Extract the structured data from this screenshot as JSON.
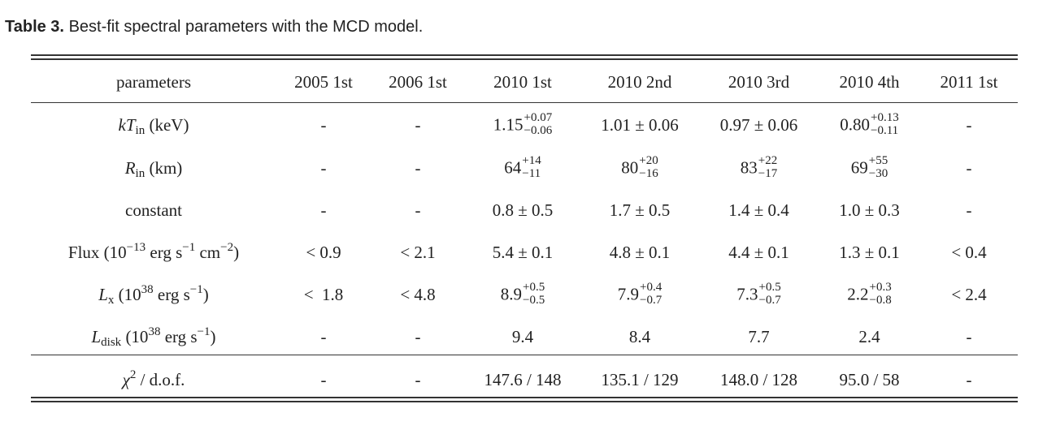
{
  "caption": {
    "label": "Table 3.",
    "text": "Best-fit spectral parameters with the MCD model."
  },
  "headers": [
    "parameters",
    "2005 1st",
    "2006 1st",
    "2010 1st",
    "2010 2nd",
    "2010 3rd",
    "2010 4th",
    "2011 1st"
  ],
  "rows": [
    {
      "param": {
        "pre": "",
        "var": "kT",
        "sub": "in",
        "sup": "",
        "post": " (keV)"
      },
      "cells": [
        {
          "text": "-"
        },
        {
          "text": "-"
        },
        {
          "base": "1.15",
          "up": "+0.07",
          "down": "−0.06"
        },
        {
          "text": "1.01 ± 0.06"
        },
        {
          "text": "0.97 ± 0.06"
        },
        {
          "base": "0.80",
          "up": "+0.13",
          "down": "−0.11"
        },
        {
          "text": "-"
        }
      ]
    },
    {
      "param": {
        "pre": "",
        "var": "R",
        "sub": "in",
        "sup": "",
        "post": " (km)"
      },
      "cells": [
        {
          "text": "-"
        },
        {
          "text": "-"
        },
        {
          "base": "64",
          "up": "+14",
          "down": "−11"
        },
        {
          "base": "80",
          "up": "+20",
          "down": "−16"
        },
        {
          "base": "83",
          "up": "+22",
          "down": "−17"
        },
        {
          "base": "69",
          "up": "+55",
          "down": "−30"
        },
        {
          "text": "-"
        }
      ]
    },
    {
      "param": {
        "plain": "constant"
      },
      "cells": [
        {
          "text": "-"
        },
        {
          "text": "-"
        },
        {
          "text": "0.8 ± 0.5"
        },
        {
          "text": "1.7 ± 0.5"
        },
        {
          "text": "1.4 ± 0.4"
        },
        {
          "text": "1.0 ± 0.3"
        },
        {
          "text": "-"
        }
      ]
    },
    {
      "param": {
        "flux_pre": "Flux (10",
        "flux_e1": "−13",
        "flux_mid": " erg s",
        "flux_e2": "−1",
        "flux_mid2": " cm",
        "flux_e3": "−2",
        "flux_post": ")"
      },
      "cells": [
        {
          "text": "< 0.9"
        },
        {
          "text": "< 2.1"
        },
        {
          "text": "5.4 ± 0.1"
        },
        {
          "text": "4.8 ± 0.1"
        },
        {
          "text": "4.4 ± 0.1"
        },
        {
          "text": "1.3 ± 0.1"
        },
        {
          "text": "< 0.4"
        }
      ]
    },
    {
      "param": {
        "var": "L",
        "sub": "x",
        "unit_pre": " (10",
        "unit_e1": "38",
        "unit_mid": " erg s",
        "unit_e2": "−1",
        "unit_post": ")"
      },
      "cells": [
        {
          "text": "<  1.8"
        },
        {
          "text": "< 4.8"
        },
        {
          "base": "8.9",
          "up": "+0.5",
          "down": "−0.5"
        },
        {
          "base": "7.9",
          "up": "+0.4",
          "down": "−0.7"
        },
        {
          "base": "7.3",
          "up": "+0.5",
          "down": "−0.7"
        },
        {
          "base": "2.2",
          "up": "+0.3",
          "down": "−0.8"
        },
        {
          "text": "< 2.4"
        }
      ]
    },
    {
      "param": {
        "var": "L",
        "sub": "disk",
        "unit_pre": " (10",
        "unit_e1": "38",
        "unit_mid": " erg s",
        "unit_e2": "−1",
        "unit_post": ")"
      },
      "cells": [
        {
          "text": "-"
        },
        {
          "text": "-"
        },
        {
          "text": "9.4"
        },
        {
          "text": "8.4"
        },
        {
          "text": "7.7"
        },
        {
          "text": "2.4"
        },
        {
          "text": "-"
        }
      ]
    }
  ],
  "chi_row": {
    "param": {
      "sym": "χ",
      "sup": "2",
      "post": " / d.o.f."
    },
    "cells": [
      "-",
      "-",
      "147.6 / 148",
      "135.1 / 129",
      "148.0 / 128",
      "95.0 / 58",
      "-"
    ]
  }
}
